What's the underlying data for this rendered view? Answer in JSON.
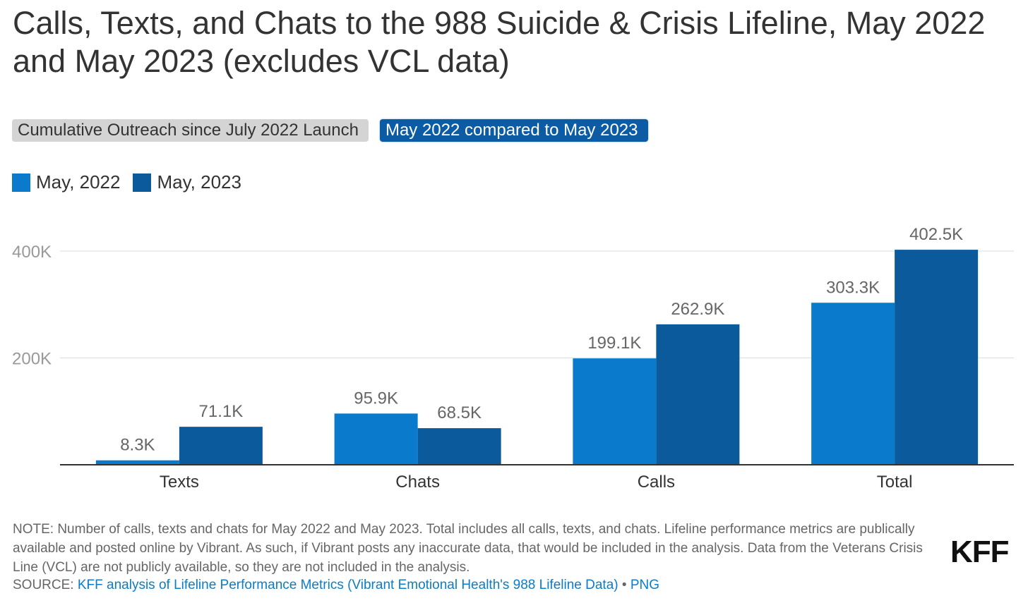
{
  "title": "Calls, Texts, and Chats to the 988 Suicide & Crisis Lifeline, May 2022 and May 2023 (excludes VCL data)",
  "tabs": [
    {
      "label": "Cumulative Outreach since July 2022 Launch",
      "active": false
    },
    {
      "label": "May 2022 compared to May 2023",
      "active": true
    }
  ],
  "legend": [
    {
      "label": "May, 2022",
      "color": "#0a7acd"
    },
    {
      "label": "May, 2023",
      "color": "#0b5a9c"
    }
  ],
  "chart_data": {
    "type": "bar",
    "categories": [
      "Texts",
      "Chats",
      "Calls",
      "Total"
    ],
    "series": [
      {
        "name": "May, 2022",
        "color": "#0a7acd",
        "values": [
          8300,
          95900,
          199100,
          303300
        ],
        "labels": [
          "8.3K",
          "95.9K",
          "199.1K",
          "303.3K"
        ]
      },
      {
        "name": "May, 2023",
        "color": "#0b5a9c",
        "values": [
          71100,
          68500,
          262900,
          402500
        ],
        "labels": [
          "71.1K",
          "68.5K",
          "262.9K",
          "402.5K"
        ]
      }
    ],
    "yticks": [
      {
        "value": 200000,
        "label": "200K"
      },
      {
        "value": 400000,
        "label": "400K"
      }
    ],
    "ylim": [
      0,
      400000
    ],
    "grid": true
  },
  "note": "NOTE: Number of calls, texts and chats for May 2022 and May 2023. Total includes all calls, texts, and chats. Lifeline performance metrics are publically available and posted online by Vibrant. As such, if Vibrant posts any inaccurate data, that would be included in the analysis. Data from the Veterans Crisis Line (VCL) are not publicly available, so they are not included in the analysis.",
  "source": {
    "prefix": "SOURCE: ",
    "link_text": "KFF analysis of Lifeline Performance Metrics (Vibrant Emotional Health's 988 Lifeline Data)",
    "separator": " • ",
    "png_text": "PNG"
  },
  "logo": "KFF"
}
